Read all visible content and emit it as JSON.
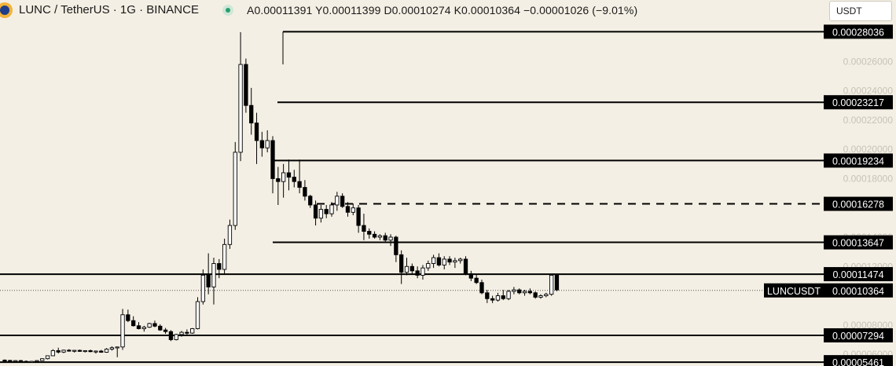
{
  "header": {
    "symbol": "LUNC / TetherUS · 1G · BINANCE",
    "ohlc": "A0.00011391 Y0.00011399 D0.00010274 K0.00010364 −0.00001026 (−9.01%)",
    "currency": "USDT"
  },
  "colors": {
    "background": "#f4efe4",
    "candle": "#000000",
    "level_label_bg": "#000000",
    "level_label_text": "#ffffff",
    "axis_text": "#c8c3b8",
    "status": "#26a06b"
  },
  "chart_data": {
    "type": "candlestick",
    "y_scale": "price",
    "ylim": [
      5.2e-05,
      0.000287
    ],
    "y_axis_ticks": [
      "0.00026000",
      "0.00024000",
      "0.00022000",
      "0.00020000",
      "0.00018000",
      "0.00016000",
      "0.00014000",
      "0.00012000",
      "0.00008000",
      "0.00006000"
    ],
    "levels": [
      {
        "label": "0.00028036",
        "value": 0.00028036,
        "style": "solid"
      },
      {
        "label": "0.00023217",
        "value": 0.00023217,
        "style": "solid"
      },
      {
        "label": "0.00019234",
        "value": 0.00019234,
        "style": "solid"
      },
      {
        "label": "0.00016278",
        "value": 0.00016278,
        "style": "dashed"
      },
      {
        "label": "0.00013647",
        "value": 0.00013647,
        "style": "solid"
      },
      {
        "label": "0.00011474",
        "value": 0.00011474,
        "style": "solid"
      },
      {
        "label": "0.00007294",
        "value": 7.294e-05,
        "style": "solid"
      },
      {
        "label": "0.00005461",
        "value": 5.461e-05,
        "style": "solid"
      }
    ],
    "current_price": {
      "symbol": "LUNCUSDT",
      "label": "0.00010364",
      "value": 0.00010364
    },
    "candles": [
      [
        5.6e-05,
        5.65e-05,
        5.55e-05,
        5.58e-05
      ],
      [
        5.58e-05,
        5.62e-05,
        5.52e-05,
        5.55e-05
      ],
      [
        5.55e-05,
        5.6e-05,
        5.5e-05,
        5.57e-05
      ],
      [
        5.57e-05,
        5.61e-05,
        5.49e-05,
        5.52e-05
      ],
      [
        5.52e-05,
        5.58e-05,
        5.46e-05,
        5.48e-05
      ],
      [
        5.48e-05,
        5.55e-05,
        5.45e-05,
        5.52e-05
      ],
      [
        5.52e-05,
        5.6e-05,
        5.5e-05,
        5.57e-05
      ],
      [
        5.57e-05,
        5.72e-05,
        5.55e-05,
        5.7e-05
      ],
      [
        5.7e-05,
        5.92e-05,
        5.65e-05,
        5.9e-05
      ],
      [
        5.9e-05,
        6.35e-05,
        5.88e-05,
        6.25e-05
      ],
      [
        6.25e-05,
        6.45e-05,
        6.05e-05,
        6.15e-05
      ],
      [
        6.15e-05,
        6.32e-05,
        6.08e-05,
        6.28e-05
      ],
      [
        6.28e-05,
        6.35e-05,
        6.18e-05,
        6.22e-05
      ],
      [
        6.22e-05,
        6.3e-05,
        6.12e-05,
        6.27e-05
      ],
      [
        6.27e-05,
        6.32e-05,
        6.17e-05,
        6.2e-05
      ],
      [
        6.2e-05,
        6.28e-05,
        6.12e-05,
        6.25e-05
      ],
      [
        6.25e-05,
        6.32e-05,
        6.14e-05,
        6.18e-05
      ],
      [
        6.18e-05,
        6.26e-05,
        6.05e-05,
        6.22e-05
      ],
      [
        6.22e-05,
        6.3e-05,
        6.1e-05,
        6.14e-05
      ],
      [
        6.14e-05,
        6.42e-05,
        6.1e-05,
        6.35e-05
      ],
      [
        6.35e-05,
        6.55e-05,
        6.25e-05,
        6.45e-05
      ],
      [
        6.45e-05,
        6.52e-05,
        5.8e-05,
        6.5e-05
      ],
      [
        6.5e-05,
        9.1e-05,
        6.3e-05,
        8.7e-05
      ],
      [
        8.7e-05,
        9.05e-05,
        8.2e-05,
        8.3e-05
      ],
      [
        8.3e-05,
        8.6e-05,
        7.9e-05,
        7.95e-05
      ],
      [
        7.95e-05,
        8.2e-05,
        7.7e-05,
        7.75e-05
      ],
      [
        7.75e-05,
        7.95e-05,
        7.55e-05,
        7.85e-05
      ],
      [
        7.85e-05,
        8.15e-05,
        7.8e-05,
        8.1e-05
      ],
      [
        8.1e-05,
        8.3e-05,
        7.85e-05,
        7.92e-05
      ],
      [
        7.92e-05,
        8.05e-05,
        7.6e-05,
        7.66e-05
      ],
      [
        7.66e-05,
        7.8e-05,
        7.4e-05,
        7.55e-05
      ],
      [
        7.55e-05,
        7.65e-05,
        6.9e-05,
        7e-05
      ],
      [
        7e-05,
        7.4e-05,
        6.95e-05,
        7.35e-05
      ],
      [
        7.35e-05,
        7.6e-05,
        7.2e-05,
        7.5e-05
      ],
      [
        7.5e-05,
        7.7e-05,
        7.35e-05,
        7.45e-05
      ],
      [
        7.45e-05,
        7.8e-05,
        7.4e-05,
        7.75e-05
      ],
      [
        7.75e-05,
        9.9e-05,
        7.7e-05,
        9.6e-05
      ],
      [
        9.6e-05,
        0.000118,
        9.4e-05,
        0.000114
      ],
      [
        0.000114,
        0.000129,
        0.000101,
        0.000106
      ],
      [
        0.000106,
        0.000126,
        9.4e-05,
        0.000122
      ],
      [
        0.000122,
        0.000125,
        0.000112,
        0.000118
      ],
      [
        0.000118,
        0.000139,
        0.000115,
        0.000135
      ],
      [
        0.000135,
        0.000152,
        0.000132,
        0.000148
      ],
      [
        0.000148,
        0.000205,
        0.000145,
        0.000198
      ],
      [
        0.000198,
        0.00028,
        0.000192,
        0.000258
      ],
      [
        0.000258,
        0.000262,
        0.000225,
        0.00023
      ],
      [
        0.00023,
        0.000242,
        0.00021,
        0.000218
      ],
      [
        0.000218,
        0.000225,
        0.00019,
        0.000206
      ],
      [
        0.000206,
        0.000212,
        0.000195,
        0.000201
      ],
      [
        0.000201,
        0.000213,
        0.000198,
        0.000206
      ],
      [
        0.000206,
        0.000209,
        0.00017,
        0.00018
      ],
      [
        0.00018,
        0.000188,
        0.000162,
        0.000178
      ],
      [
        0.000178,
        0.00019,
        0.000167,
        0.000184
      ],
      [
        0.000184,
        0.000193,
        0.000172,
        0.000181
      ],
      [
        0.000181,
        0.000186,
        0.000174,
        0.000178
      ],
      [
        0.000178,
        0.000193,
        0.00017,
        0.000174
      ],
      [
        0.000174,
        0.000179,
        0.000165,
        0.000168
      ],
      [
        0.000168,
        0.000169,
        0.00016,
        0.000162
      ],
      [
        0.000162,
        0.000165,
        0.000148,
        0.000153
      ],
      [
        0.000153,
        0.000162,
        0.00015,
        0.000159
      ],
      [
        0.000159,
        0.000162,
        0.000153,
        0.000156
      ],
      [
        0.000156,
        0.000164,
        0.000154,
        0.000162
      ],
      [
        0.000162,
        0.000171,
        0.000158,
        0.000168
      ],
      [
        0.000168,
        0.00017,
        0.00016,
        0.000161
      ],
      [
        0.000161,
        0.000164,
        0.000154,
        0.000157
      ],
      [
        0.000157,
        0.000163,
        0.000155,
        0.00016
      ],
      [
        0.00016,
        0.000162,
        0.000143,
        0.000148
      ],
      [
        0.000148,
        0.000156,
        0.000138,
        0.000144
      ],
      [
        0.000144,
        0.000146,
        0.000139,
        0.000142
      ],
      [
        0.000142,
        0.000144,
        0.000139,
        0.00014
      ],
      [
        0.00014,
        0.000142,
        0.000138,
        0.000141
      ],
      [
        0.000141,
        0.000143,
        0.000137,
        0.000138
      ],
      [
        0.000138,
        0.000142,
        0.000134,
        0.00014
      ],
      [
        0.00014,
        0.000141,
        0.000123,
        0.000128
      ],
      [
        0.000128,
        0.000131,
        0.000108,
        0.000116
      ],
      [
        0.000116,
        0.000126,
        0.000114,
        0.00012
      ],
      [
        0.00012,
        0.000122,
        0.000115,
        0.000117
      ],
      [
        0.000117,
        0.00012,
        0.000112,
        0.000114
      ],
      [
        0.000114,
        0.000121,
        0.000111,
        0.000119
      ],
      [
        0.000119,
        0.000124,
        0.000117,
        0.000122
      ],
      [
        0.000122,
        0.000128,
        0.000119,
        0.000126
      ],
      [
        0.000126,
        0.000129,
        0.00012,
        0.000121
      ],
      [
        0.000121,
        0.000127,
        0.000118,
        0.000125
      ],
      [
        0.000125,
        0.000127,
        0.000121,
        0.000123
      ],
      [
        0.000123,
        0.000126,
        0.000119,
        0.000124
      ],
      [
        0.000124,
        0.000126,
        0.000122,
        0.000125
      ],
      [
        0.000125,
        0.000127,
        0.000114,
        0.000115
      ],
      [
        0.000115,
        0.000117,
        0.00011,
        0.000112
      ],
      [
        0.000112,
        0.000115,
        0.000108,
        0.000109
      ],
      [
        0.000109,
        0.000111,
        0.000101,
        0.000102
      ],
      [
        0.000102,
        0.000104,
        9.5e-05,
        9.8e-05
      ],
      [
        9.8e-05,
        0.0001,
        9.5e-05,
        9.7e-05
      ],
      [
        9.7e-05,
        0.000102,
        9.6e-05,
        0.0001
      ],
      [
        0.0001,
        0.000104,
        9.7e-05,
        9.8e-05
      ],
      [
        9.8e-05,
        0.000104,
        9.7e-05,
        0.000103
      ],
      [
        0.000103,
        0.000106,
        0.000101,
        0.000104
      ],
      [
        0.000104,
        0.000105,
        0.000101,
        0.000102
      ],
      [
        0.000102,
        0.000104,
        0.0001,
        0.000103
      ],
      [
        0.000103,
        0.000105,
        0.000101,
        0.000102
      ],
      [
        0.000102,
        0.000103,
        9.8e-05,
        9.9e-05
      ],
      [
        9.9e-05,
        0.000101,
        9.8e-05,
        0.0001
      ],
      [
        0.0001,
        0.000102,
        9.9e-05,
        0.000101
      ],
      [
        0.000101,
        0.000115,
        0.0001,
        0.000114
      ],
      [
        0.000114,
        0.000115,
        0.000103,
        0.000104
      ]
    ]
  }
}
